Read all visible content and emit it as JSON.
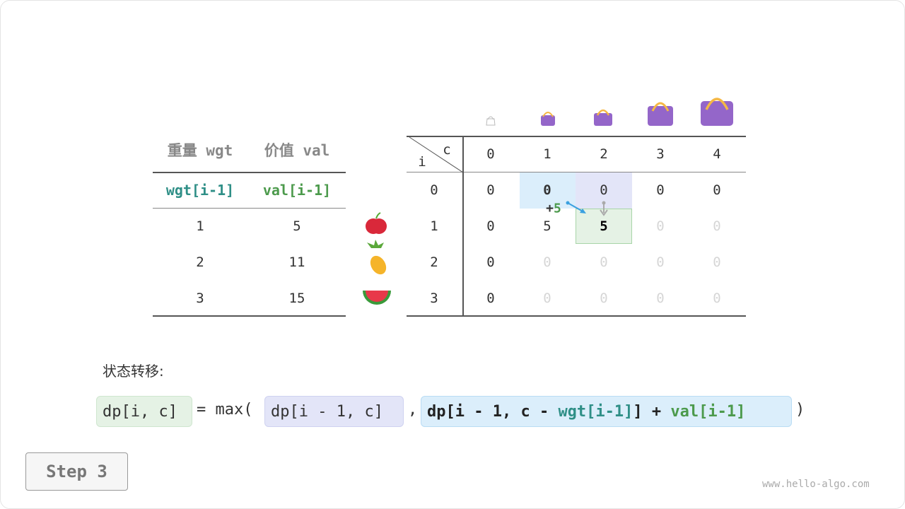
{
  "left_table": {
    "headers": [
      "重量 wgt",
      "价值 val"
    ],
    "subheaders": [
      "wgt[i-1]",
      "val[i-1]"
    ],
    "rows": [
      [
        "1",
        "5"
      ],
      [
        "2",
        "11"
      ],
      [
        "3",
        "15"
      ]
    ]
  },
  "items": [
    "apple-icon",
    "pineapple-icon",
    "watermelon-icon"
  ],
  "dp_table": {
    "corner_c": "c",
    "corner_i": "i",
    "col_headers": [
      "0",
      "1",
      "2",
      "3",
      "4"
    ],
    "row_headers": [
      "0",
      "1",
      "2",
      "3"
    ],
    "cells": [
      [
        "0",
        "0",
        "0",
        "0",
        "0"
      ],
      [
        "0",
        "5",
        "5",
        "0",
        "0"
      ],
      [
        "0",
        "0",
        "0",
        "0",
        "0"
      ],
      [
        "0",
        "0",
        "0",
        "0",
        "0"
      ]
    ],
    "solved": [
      [
        1,
        1,
        1,
        1,
        1
      ],
      [
        1,
        1,
        1,
        0,
        0
      ],
      [
        1,
        0,
        0,
        0,
        0
      ],
      [
        1,
        0,
        0,
        0,
        0
      ]
    ],
    "annotation_plus": "+",
    "annotation_value": "5"
  },
  "formula": {
    "label": "状态转移:",
    "lhs": "dp[i, c]",
    "eq": "= max(",
    "opt1": "dp[i - 1, c]",
    "comma": ",",
    "opt2_a": "dp[i - 1, c - ",
    "opt2_wgt": "wgt[i-1]",
    "opt2_b": "] + ",
    "opt2_val": "val[i-1]",
    "close": ")"
  },
  "step_button": "Step 3",
  "watermark": "www.hello-algo.com",
  "colors": {
    "wgt": "#2f8f87",
    "val": "#4c9a4c",
    "blue": "#dbeefb",
    "purple": "#e3e5f8",
    "green": "#e5f2e5",
    "bag": "#9466c9",
    "handle": "#f5b845"
  }
}
